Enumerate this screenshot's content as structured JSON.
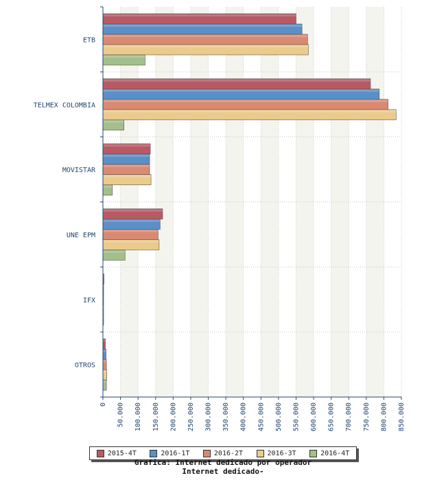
{
  "chart_data": {
    "type": "bar",
    "orientation": "horizontal",
    "categories": [
      "ETB",
      "TELMEX COLOMBIA",
      "MOVISTAR",
      "UNE EPM",
      "IFX",
      "OTROS"
    ],
    "series": [
      {
        "name": "2015-4T",
        "color": "#b85a66",
        "values": [
          550000,
          762000,
          135000,
          170000,
          3000,
          7000
        ]
      },
      {
        "name": "2016-1T",
        "color": "#5b8fc7",
        "values": [
          567000,
          787000,
          133000,
          163000,
          2000,
          9000
        ]
      },
      {
        "name": "2016-2T",
        "color": "#d98a72",
        "values": [
          583000,
          812000,
          133000,
          157000,
          2000,
          10000
        ]
      },
      {
        "name": "2016-3T",
        "color": "#eacb8d",
        "values": [
          585000,
          835000,
          137000,
          160000,
          1000,
          11000
        ]
      },
      {
        "name": "2016-4T",
        "color": "#a3bf8c",
        "values": [
          120000,
          60000,
          27000,
          63000,
          500,
          10000
        ]
      }
    ],
    "xlim": [
      0,
      850000
    ],
    "xticks": [
      "0",
      "50.000",
      "100.000",
      "150.000",
      "200.000",
      "250.000",
      "300.000",
      "350.000",
      "400.000",
      "450.000",
      "500.000",
      "550.000",
      "600.000",
      "650.000",
      "700.000",
      "750.000",
      "800.000",
      "850.000"
    ],
    "grid": true,
    "legend_position": "bottom",
    "footer": [
      "Grafica: Internet dedicado por operador",
      "Internet dedicado-"
    ]
  }
}
